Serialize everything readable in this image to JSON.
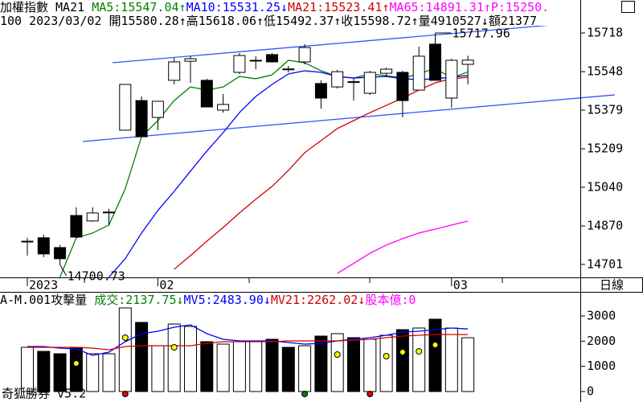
{
  "chart_data": [
    {
      "type": "candlestick",
      "header": {
        "line1": [
          {
            "text": "加權指數 MA21 ",
            "color": "#000000"
          },
          {
            "text": "MA5:15547.04↑",
            "color": "#008000"
          },
          {
            "text": "MA10:15531.25↓",
            "color": "#0000ff"
          },
          {
            "text": "MA21:15523.41↑",
            "color": "#d00000"
          },
          {
            "text": "MA65:14891.31↑",
            "color": "#ff00ff"
          },
          {
            "text": "P:15250.",
            "color": "#ff00ff"
          }
        ],
        "line2": [
          {
            "text": "100 2023/03/02 開15580.28↑高15618.06↑低15492.37↑收15598.72↑量4910527↓額21377",
            "color": "#000000"
          }
        ]
      },
      "categories": [
        "2023",
        null,
        null,
        null,
        null,
        null,
        null,
        null,
        "02",
        null,
        null,
        null,
        null,
        null,
        null,
        null,
        null,
        null,
        null,
        null,
        null,
        null,
        null,
        null,
        null,
        null,
        "03",
        null
      ],
      "open": [
        14803,
        14818,
        14775,
        14916,
        14892,
        14931,
        15291,
        15421,
        15347,
        15510,
        15594,
        15510,
        15379,
        15545,
        15598,
        15623,
        15560,
        15591,
        15496,
        15481,
        15504,
        15453,
        15541,
        15545,
        15467,
        15669,
        15432,
        15580.28
      ],
      "high": [
        14818,
        14832,
        14786,
        14952,
        14952,
        14945,
        15492,
        15439,
        15418,
        15609,
        15616,
        15517,
        15450,
        15630,
        15616,
        15630,
        15573,
        15669,
        15510,
        15556,
        15517,
        15552,
        15566,
        15552,
        15658,
        15717.96,
        15605,
        15618.06
      ],
      "low": [
        14740,
        14733,
        14700.73,
        14821,
        14888,
        14874,
        15291,
        15259,
        15291,
        15492,
        15499,
        15393,
        15368,
        15538,
        15559,
        15588,
        15545,
        15580,
        15386,
        15474,
        15421,
        15446,
        15524,
        15347,
        15467,
        15510,
        15390,
        15492.37
      ],
      "close": [
        14803,
        14747,
        14726,
        14821,
        14927,
        14931,
        15492,
        15262,
        15418,
        15591,
        15605,
        15393,
        15404,
        15619,
        15598,
        15591,
        15559,
        15654,
        15432,
        15548,
        15503,
        15545,
        15559,
        15421,
        15616,
        15510,
        15598,
        15598.72
      ],
      "up_color": "#ffffff",
      "down_color": "#000000",
      "lines": [
        {
          "color": "#008000",
          "values": [
            null,
            null,
            14645,
            14818,
            14839,
            14874,
            15033,
            15262,
            15333,
            15421,
            15481,
            15467,
            15481,
            15527,
            15517,
            15534,
            15598,
            15587,
            15552,
            15527,
            15520,
            15538,
            15531,
            15520,
            15538,
            15563,
            15520,
            15547.04
          ]
        },
        {
          "color": "#0000ff",
          "values": [
            null,
            null,
            null,
            null,
            null,
            14645,
            14726,
            14839,
            14938,
            15022,
            15111,
            15199,
            15280,
            15368,
            15439,
            15492,
            15538,
            15552,
            15545,
            15527,
            15520,
            15524,
            15527,
            15517,
            15513,
            15517,
            15524,
            15531.25
          ]
        },
        {
          "color": "#d00000",
          "values": [
            null,
            null,
            null,
            null,
            null,
            null,
            null,
            null,
            null,
            14680,
            14740,
            14803,
            14863,
            14927,
            14987,
            15044,
            15114,
            15192,
            15245,
            15298,
            15333,
            15368,
            15400,
            15432,
            15467,
            15499,
            15517,
            15523.41
          ]
        },
        {
          "color": "#ff00ff",
          "values": [
            null,
            null,
            null,
            null,
            null,
            null,
            null,
            null,
            null,
            null,
            null,
            null,
            null,
            null,
            null,
            null,
            null,
            null,
            null,
            14662,
            14705,
            14750,
            14786,
            14814,
            14839,
            14856,
            14874,
            14891.31
          ]
        }
      ],
      "ylim": [
        14644,
        15863
      ],
      "yticks": [
        15718,
        15548,
        15379,
        15209,
        15040,
        14870,
        14701
      ]
    },
    {
      "type": "bar",
      "header": {
        "line1": [
          {
            "text": "A-M.001攻擊量 ",
            "color": "#000000"
          },
          {
            "text": "成交:2137.75↓",
            "color": "#008000"
          },
          {
            "text": "MV5:2483.90↓",
            "color": "#0000ff"
          },
          {
            "text": "MV21:2262.02↓",
            "color": "#d00000"
          },
          {
            "text": "股本億:0",
            "color": "#ff00ff"
          }
        ]
      },
      "values": [
        1756,
        1596,
        1500,
        1756,
        1500,
        1500,
        3320,
        2745,
        1819,
        2681,
        2586,
        1979,
        1883,
        1979,
        1979,
        2075,
        1756,
        1819,
        2202,
        2298,
        2139,
        2075,
        2234,
        2458,
        2522,
        2873,
        2522,
        2137.75
      ],
      "lines": [
        {
          "color": "#0000ff",
          "values": [
            1788,
            1788,
            1724,
            1692,
            1436,
            1564,
            1979,
            2298,
            2394,
            2554,
            2649,
            2298,
            2075,
            2011,
            2011,
            2011,
            1947,
            1883,
            1915,
            2011,
            2075,
            2139,
            2234,
            2362,
            2394,
            2458,
            2522,
            2483.9
          ]
        },
        {
          "color": "#d00000",
          "values": [
            1756,
            1756,
            1756,
            1756,
            1724,
            1660,
            1788,
            1819,
            1819,
            1819,
            1819,
            1915,
            1979,
            1979,
            1979,
            1979,
            2011,
            2011,
            2011,
            2011,
            2043,
            2075,
            2139,
            2202,
            2234,
            2266,
            2266,
            2262.02
          ]
        }
      ],
      "markers": {
        "color": "#ffff00",
        "values": [
          null,
          null,
          null,
          1117,
          null,
          null,
          2139,
          null,
          null,
          1756,
          null,
          null,
          null,
          null,
          null,
          null,
          null,
          null,
          null,
          1468,
          null,
          null,
          1404,
          1564,
          1596,
          1851,
          null,
          null
        ]
      },
      "signals": [
        null,
        null,
        null,
        null,
        null,
        null,
        "#e00000",
        null,
        null,
        null,
        null,
        null,
        null,
        null,
        null,
        null,
        null,
        "#008000",
        null,
        null,
        null,
        "#e00000",
        null,
        null,
        null,
        null,
        null,
        null
      ],
      "ylim": [
        -320,
        3895
      ],
      "yticks": [
        0,
        1000,
        2000,
        3000
      ]
    }
  ],
  "period": "日線",
  "footer": "奇狐勝券 v5.2"
}
